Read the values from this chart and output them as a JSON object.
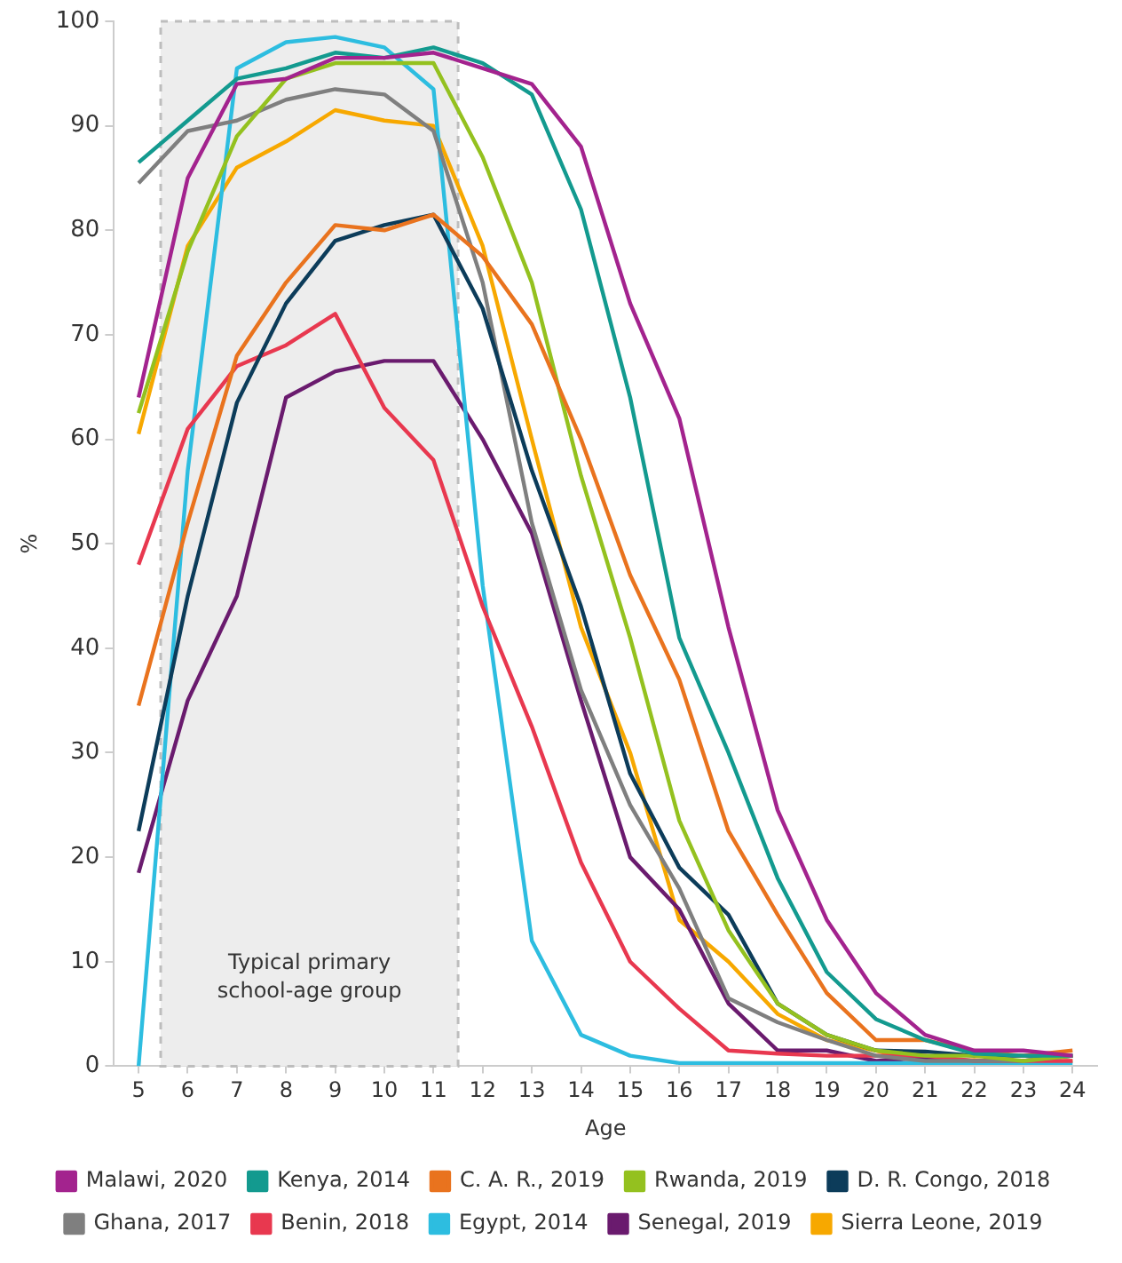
{
  "chart_data": {
    "type": "line",
    "xlabel": "Age",
    "ylabel": "%",
    "x": [
      5,
      6,
      7,
      8,
      9,
      10,
      11,
      12,
      13,
      14,
      15,
      16,
      17,
      18,
      19,
      20,
      21,
      22,
      23,
      24
    ],
    "xlim": [
      4.5,
      24.5
    ],
    "xticks": [
      5,
      6,
      7,
      8,
      9,
      10,
      11,
      12,
      13,
      14,
      15,
      16,
      17,
      18,
      19,
      20,
      21,
      22,
      23,
      24
    ],
    "ylim": [
      0,
      100
    ],
    "yticks": [
      0,
      10,
      20,
      30,
      40,
      50,
      60,
      70,
      80,
      90,
      100
    ],
    "grid": false,
    "legend": "bottom",
    "marker": "none",
    "line_style": "solid",
    "bands": [
      {
        "axis": "x",
        "from": 5.45,
        "to": 11.5,
        "label": "Typical primary school-age group",
        "color": "#ededed"
      }
    ],
    "series": [
      {
        "name": "Malawi, 2020",
        "color": "#a3238e",
        "values": [
          64,
          85,
          94,
          94.5,
          96.5,
          96.5,
          97,
          95.5,
          94,
          88,
          73,
          62,
          42,
          24.5,
          14,
          7,
          3,
          1.5,
          1.5,
          1
        ]
      },
      {
        "name": "Kenya, 2014",
        "color": "#139a8f",
        "values": [
          86.5,
          90.5,
          94.5,
          95.5,
          97,
          96.5,
          97.5,
          96,
          93,
          82,
          64,
          41,
          30,
          18,
          9,
          4.5,
          2.5,
          1.2,
          1,
          1
        ]
      },
      {
        "name": "C. A. R., 2019",
        "color": "#e9731e",
        "values": [
          34.5,
          52,
          68,
          75,
          80.5,
          80,
          81.5,
          77.5,
          71,
          60,
          47,
          37,
          22.5,
          14.5,
          7,
          2.5,
          2.5,
          1.4,
          1,
          1.5
        ]
      },
      {
        "name": "Rwanda, 2019",
        "color": "#94c11f",
        "values": [
          62.5,
          78,
          89,
          94.5,
          96,
          96,
          96,
          87,
          75,
          56.5,
          41,
          23.5,
          13,
          6,
          3,
          1.5,
          1,
          1,
          0.5,
          1
        ]
      },
      {
        "name": "D. R. Congo, 2018",
        "color": "#0c3c5a",
        "values": [
          22.5,
          45,
          63.5,
          73,
          79,
          80.5,
          81.5,
          72.5,
          57,
          44,
          28,
          19,
          14.5,
          6,
          3,
          1.5,
          1.4,
          1,
          1,
          1
        ]
      },
      {
        "name": "Ghana, 2017",
        "color": "#7f7f7f",
        "values": [
          84.5,
          89.5,
          90.5,
          92.5,
          93.5,
          93,
          89.5,
          75,
          52,
          36,
          25,
          17,
          6.5,
          4.2,
          2.5,
          1,
          0.5,
          0.5,
          0.5,
          1
        ]
      },
      {
        "name": "Benin, 2018",
        "color": "#e8384f",
        "values": [
          48,
          61,
          67,
          69,
          72,
          63,
          58,
          44,
          32.5,
          19.5,
          10,
          5.5,
          1.5,
          1.2,
          1,
          1,
          1,
          0.5,
          0.5,
          0.5
        ]
      },
      {
        "name": "Egypt, 2014",
        "color": "#2dbde0",
        "values": [
          0,
          57,
          95.5,
          98,
          98.5,
          97.5,
          93.5,
          46,
          12,
          3,
          1,
          0.3,
          0.3,
          0.3,
          0.3,
          0.3,
          0.3,
          0.3,
          0.3,
          0.3
        ]
      },
      {
        "name": "Senegal, 2019",
        "color": "#6a1b6e",
        "values": [
          18.5,
          35,
          45,
          64,
          66.5,
          67.5,
          67.5,
          60,
          51,
          35,
          20,
          15,
          6,
          1.5,
          1.5,
          0.5,
          0.8,
          0.5,
          0.5,
          1
        ]
      },
      {
        "name": "Sierra Leone, 2019",
        "color": "#f7a800",
        "values": [
          60.5,
          78.5,
          86,
          88.5,
          91.5,
          90.5,
          90,
          78.5,
          60,
          42,
          30,
          14,
          10,
          5,
          2.5,
          1.5,
          0.3,
          0.6,
          0.3,
          0.5
        ]
      }
    ]
  }
}
